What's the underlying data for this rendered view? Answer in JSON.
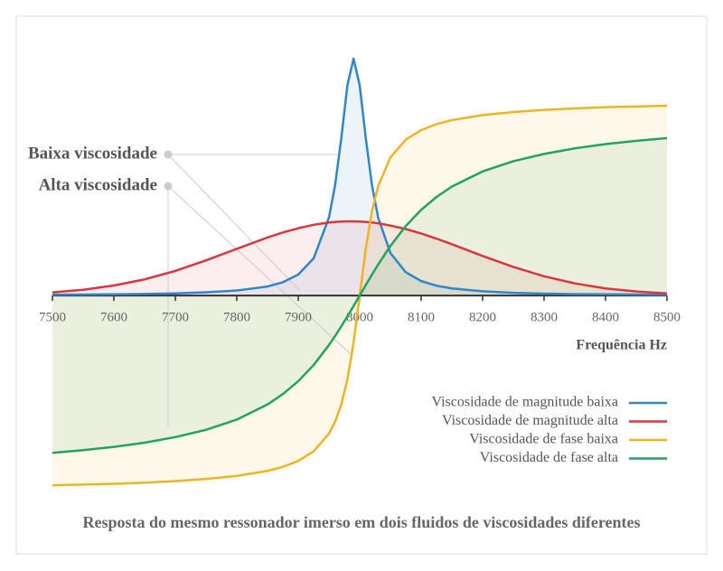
{
  "chart_data": {
    "type": "line",
    "xlabel": "Frequência Hz",
    "caption": "Resposta do mesmo ressonador imerso em dois fluidos de viscosidades diferentes",
    "annotations": [
      "Baixa viscosidade",
      "Alta viscosidade"
    ],
    "x": [
      7500,
      7550,
      7600,
      7650,
      7700,
      7750,
      7800,
      7850,
      7875,
      7900,
      7925,
      7950,
      7960,
      7970,
      7980,
      7990,
      8000,
      8010,
      8020,
      8030,
      8050,
      8075,
      8100,
      8125,
      8150,
      8200,
      8250,
      8300,
      8350,
      8400,
      8450,
      8500
    ],
    "xlim": [
      7500,
      8500
    ],
    "xticks": [
      7500,
      7600,
      7700,
      7800,
      7900,
      8000,
      8100,
      8200,
      8300,
      8400,
      8500
    ],
    "ylim": [
      -1.1,
      1.35
    ],
    "legend": "lower-right",
    "series": [
      {
        "name": "Viscosidade de magnitude baixa",
        "color": "#2f86c8",
        "values": [
          0.004,
          0.005,
          0.006,
          0.008,
          0.011,
          0.017,
          0.026,
          0.047,
          0.069,
          0.109,
          0.193,
          0.406,
          0.574,
          0.817,
          1.094,
          1.233,
          1.094,
          0.817,
          0.574,
          0.406,
          0.221,
          0.121,
          0.075,
          0.051,
          0.037,
          0.022,
          0.014,
          0.01,
          0.007,
          0.006,
          0.005,
          0.004
        ]
      },
      {
        "name": "Viscosidade de magnitude alta",
        "color": "#d9363e",
        "values": [
          0.016,
          0.03,
          0.052,
          0.084,
          0.128,
          0.183,
          0.243,
          0.302,
          0.328,
          0.35,
          0.368,
          0.38,
          0.383,
          0.385,
          0.386,
          0.386,
          0.385,
          0.383,
          0.38,
          0.376,
          0.364,
          0.346,
          0.323,
          0.296,
          0.267,
          0.206,
          0.149,
          0.1,
          0.063,
          0.037,
          0.021,
          0.011
        ]
      },
      {
        "name": "Viscosidade de fase baixa",
        "color": "#f0b323",
        "values": [
          -0.988,
          -0.984,
          -0.98,
          -0.974,
          -0.966,
          -0.955,
          -0.939,
          -0.913,
          -0.892,
          -0.861,
          -0.811,
          -0.719,
          -0.657,
          -0.569,
          -0.438,
          -0.247,
          0,
          0.247,
          0.438,
          0.569,
          0.719,
          0.811,
          0.861,
          0.892,
          0.913,
          0.939,
          0.955,
          0.966,
          0.974,
          0.98,
          0.984,
          0.988
        ]
      },
      {
        "name": "Viscosidade de fase alta",
        "color": "#22a45a",
        "values": [
          -0.819,
          -0.805,
          -0.788,
          -0.766,
          -0.737,
          -0.699,
          -0.646,
          -0.567,
          -0.513,
          -0.446,
          -0.362,
          -0.258,
          -0.211,
          -0.161,
          -0.109,
          -0.055,
          0,
          0.055,
          0.109,
          0.161,
          0.258,
          0.362,
          0.446,
          0.513,
          0.567,
          0.646,
          0.699,
          0.737,
          0.766,
          0.788,
          0.805,
          0.819
        ]
      }
    ]
  }
}
